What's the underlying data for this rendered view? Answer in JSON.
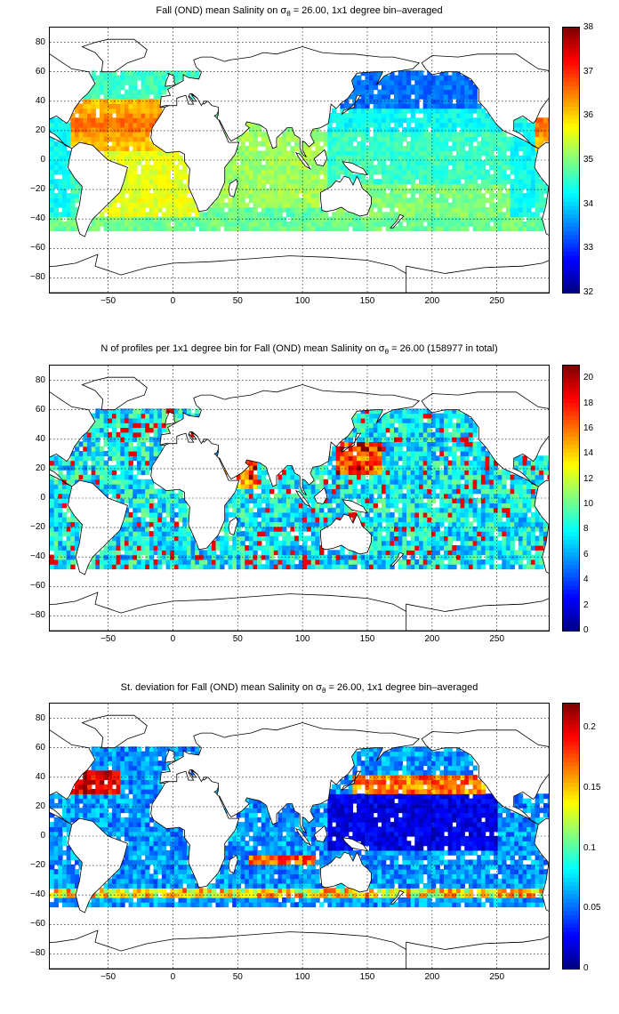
{
  "panels": [
    {
      "title_pre": "Fall (OND) mean Salinity on ",
      "title_sigma": "σ",
      "title_sub": "θ",
      "title_post": " = 26.00, 1x1 degree bin–averaged",
      "colorbar": {
        "min": 32,
        "max": 38,
        "ticks": [
          "38",
          "37",
          "36",
          "35",
          "34",
          "33",
          "32"
        ]
      },
      "field": "salinity"
    },
    {
      "title_pre": "N of profiles per 1x1 degree bin for Fall (OND) mean Salinity on ",
      "title_sigma": "σ",
      "title_sub": "θ",
      "title_post": " = 26.00 (158977 in total)",
      "colorbar": {
        "min": 0,
        "max": 21,
        "ticks": [
          "20",
          "18",
          "16",
          "14",
          "12",
          "10",
          "8",
          "6",
          "4",
          "2",
          "0"
        ]
      },
      "field": "count"
    },
    {
      "title_pre": "St. deviation for Fall (OND) mean Salinity on ",
      "title_sigma": "σ",
      "title_sub": "θ",
      "title_post": " = 26.00, 1x1 degree bin–averaged",
      "colorbar": {
        "min": 0,
        "max": 0.22,
        "ticks": [
          "0.2",
          "0.15",
          "0.1",
          "0.05",
          "0"
        ]
      },
      "field": "std"
    }
  ],
  "x_ticks": [
    "−50",
    "0",
    "50",
    "100",
    "150",
    "200",
    "250"
  ],
  "y_ticks": [
    "80",
    "60",
    "40",
    "20",
    "0",
    "−20",
    "−40",
    "−60",
    "−80"
  ],
  "lon_range": [
    -95,
    290
  ],
  "lat_range": [
    -90,
    90
  ],
  "grid": true,
  "colormap": "jet"
}
